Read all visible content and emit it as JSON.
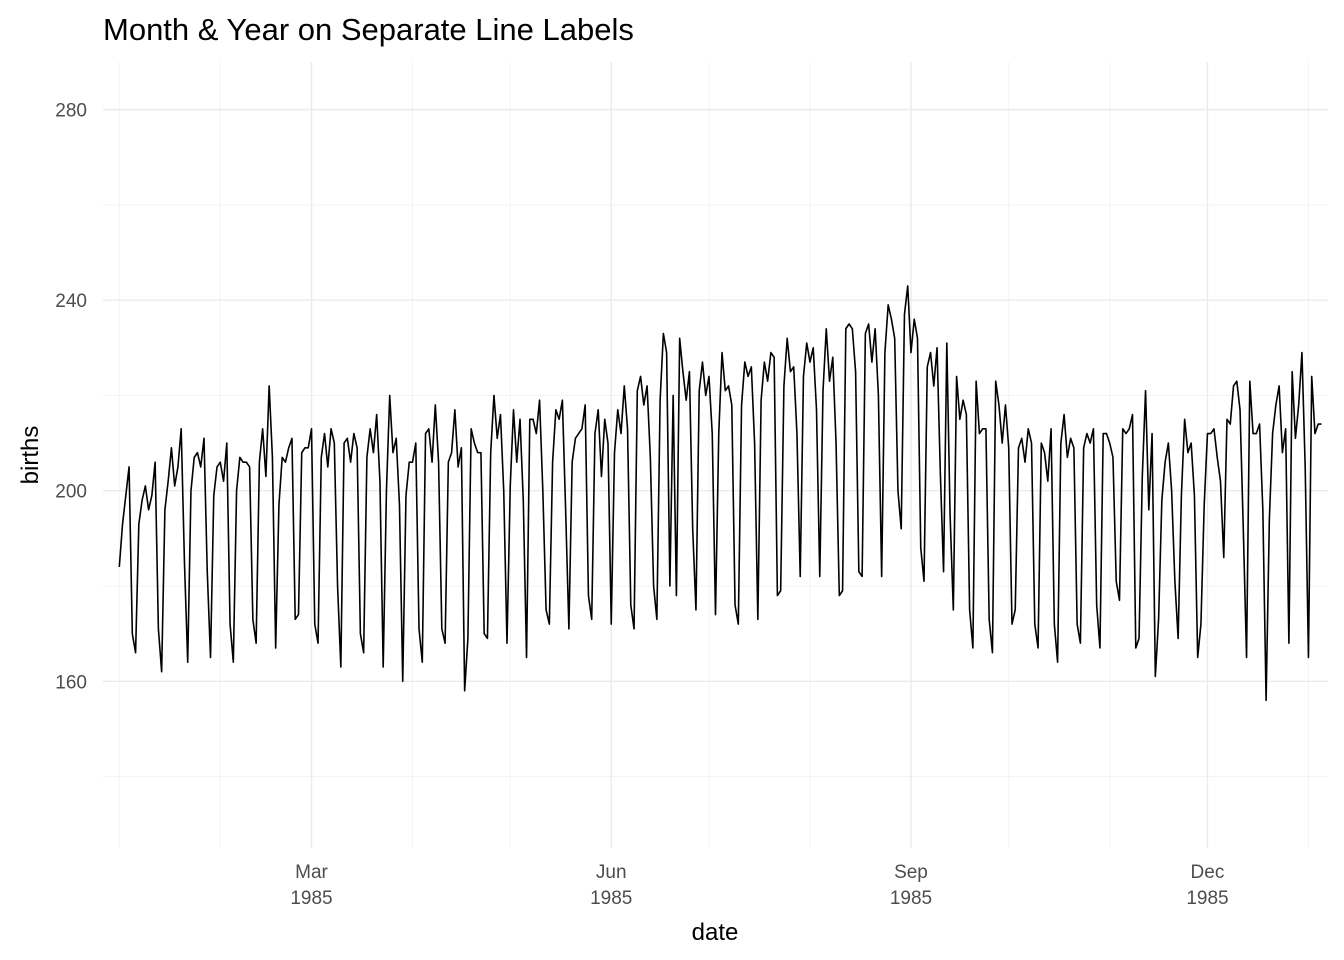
{
  "chart_data": {
    "type": "line",
    "title": "Month & Year on Separate Line Labels",
    "xlabel": "date",
    "ylabel": "births",
    "x_ticks": [
      {
        "date": "1985-03-01",
        "line1": "Mar",
        "line2": "1985"
      },
      {
        "date": "1985-06-01",
        "line1": "Jun",
        "line2": "1985"
      },
      {
        "date": "1985-09-01",
        "line1": "Sep",
        "line2": "1985"
      },
      {
        "date": "1985-12-01",
        "line1": "Dec",
        "line2": "1985"
      }
    ],
    "y_ticks": [
      160,
      200,
      240,
      280
    ],
    "ylim": [
      125,
      290
    ],
    "xlim": [
      "1984-12-27",
      "1986-01-07"
    ],
    "grid": true,
    "series": [
      {
        "start_date": "1985-01-01",
        "values": [
          184,
          193,
          199,
          205,
          170,
          166,
          193,
          198,
          201,
          196,
          199,
          206,
          171,
          162,
          196,
          202,
          209,
          201,
          205,
          213,
          185,
          164,
          200,
          207,
          208,
          205,
          211,
          183,
          165,
          199,
          205,
          206,
          202,
          210,
          172,
          164,
          200,
          207,
          206,
          206,
          205,
          173,
          168,
          206,
          213,
          203,
          222,
          207,
          167,
          197,
          207,
          206,
          209,
          211,
          173,
          174,
          208,
          209,
          209,
          213,
          172,
          168,
          207,
          212,
          205,
          213,
          210,
          180,
          163,
          210,
          211,
          206,
          212,
          209,
          170,
          166,
          207,
          213,
          208,
          216,
          202,
          163,
          200,
          220,
          208,
          211,
          197,
          160,
          199,
          206,
          206,
          210,
          171,
          164,
          212,
          213,
          206,
          218,
          206,
          171,
          168,
          206,
          208,
          217,
          205,
          209,
          158,
          169,
          213,
          210,
          208,
          208,
          170,
          169,
          208,
          220,
          211,
          216,
          200,
          168,
          201,
          217,
          206,
          215,
          198,
          165,
          215,
          215,
          212,
          219,
          200,
          175,
          172,
          206,
          217,
          215,
          219,
          196,
          171,
          206,
          211,
          212,
          213,
          218,
          178,
          173,
          212,
          217,
          203,
          215,
          210,
          172,
          208,
          217,
          212,
          222,
          213,
          176,
          171,
          221,
          224,
          218,
          222,
          207,
          180,
          173,
          219,
          233,
          229,
          180,
          220,
          178,
          232,
          225,
          219,
          225,
          192,
          175,
          221,
          227,
          220,
          224,
          212,
          174,
          212,
          229,
          221,
          222,
          218,
          176,
          172,
          218,
          227,
          224,
          226,
          210,
          173,
          219,
          227,
          223,
          229,
          228,
          178,
          179,
          222,
          232,
          225,
          226,
          212,
          182,
          224,
          231,
          227,
          230,
          217,
          182,
          221,
          234,
          223,
          228,
          210,
          178,
          179,
          234,
          235,
          234,
          225,
          183,
          182,
          233,
          235,
          227,
          234,
          220,
          182,
          229,
          239,
          236,
          232,
          200,
          192,
          237,
          243,
          229,
          236,
          232,
          188,
          181,
          226,
          229,
          222,
          230,
          204,
          183,
          231,
          195,
          175,
          224,
          215,
          219,
          216,
          175,
          167,
          223,
          212,
          213,
          213,
          173,
          166,
          223,
          218,
          210,
          218,
          209,
          172,
          175,
          209,
          211,
          206,
          213,
          210,
          172,
          167,
          210,
          208,
          202,
          213,
          172,
          164,
          210,
          216,
          207,
          211,
          209,
          172,
          168,
          209,
          212,
          210,
          213,
          176,
          167,
          212,
          212,
          210,
          207,
          181,
          177,
          213,
          212,
          213,
          216,
          167,
          169,
          203,
          221,
          196,
          212,
          161,
          173,
          198,
          206,
          210,
          200,
          181,
          169,
          199,
          215,
          208,
          210,
          199,
          165,
          172,
          197,
          212,
          212,
          213,
          207,
          202,
          186,
          215,
          214,
          222,
          223,
          217,
          192,
          165,
          223,
          212,
          212,
          214,
          196,
          156,
          194,
          212,
          218,
          222,
          208,
          213,
          168,
          225,
          211,
          218,
          229,
          205,
          165,
          224,
          212,
          214,
          214
        ]
      }
    ]
  }
}
